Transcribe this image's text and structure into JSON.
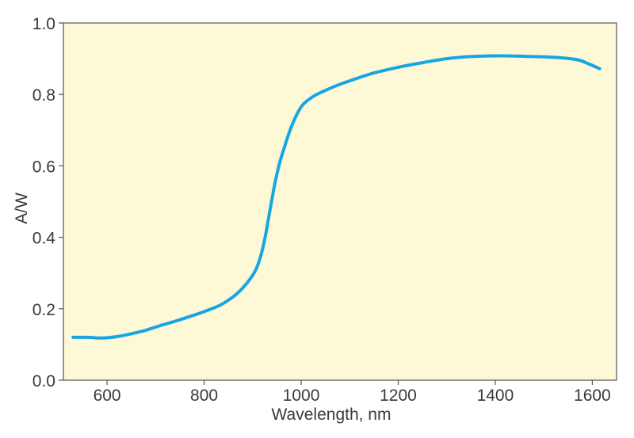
{
  "chart_data": {
    "type": "line",
    "title": "",
    "xlabel": "Wavelength, nm",
    "ylabel": "A/W",
    "xlim": [
      510,
      1650
    ],
    "ylim": [
      0,
      1.0
    ],
    "x_ticks": [
      600,
      800,
      1000,
      1200,
      1400,
      1600
    ],
    "x_tick_labels": [
      "600",
      "800",
      "1000",
      "1200",
      "1400",
      "1600"
    ],
    "y_ticks": [
      0,
      0.2,
      0.4,
      0.6,
      0.8,
      1.0
    ],
    "y_tick_labels": [
      "0.0",
      "0.2",
      "0.4",
      "0.6",
      "0.8",
      "1.0"
    ],
    "grid": false,
    "legend": "none",
    "colors": {
      "plot_background": "#fdf9d6",
      "line": "#18a6e2",
      "axis": "#555555",
      "text": "#3a3a3a"
    },
    "series": [
      {
        "x": [
          530,
          560,
          590,
          620,
          650,
          680,
          710,
          740,
          770,
          800,
          830,
          850,
          870,
          890,
          905,
          915,
          925,
          935,
          945,
          955,
          965,
          980,
          1000,
          1020,
          1040,
          1070,
          1100,
          1150,
          1200,
          1250,
          1300,
          1350,
          1400,
          1450,
          1500,
          1540,
          1570,
          1590,
          1615
        ],
        "y": [
          0.12,
          0.12,
          0.118,
          0.122,
          0.13,
          0.14,
          0.153,
          0.165,
          0.178,
          0.192,
          0.208,
          0.224,
          0.245,
          0.275,
          0.305,
          0.34,
          0.395,
          0.47,
          0.545,
          0.605,
          0.65,
          0.71,
          0.765,
          0.79,
          0.805,
          0.823,
          0.838,
          0.86,
          0.876,
          0.889,
          0.9,
          0.906,
          0.908,
          0.907,
          0.905,
          0.902,
          0.897,
          0.887,
          0.872
        ]
      }
    ]
  }
}
